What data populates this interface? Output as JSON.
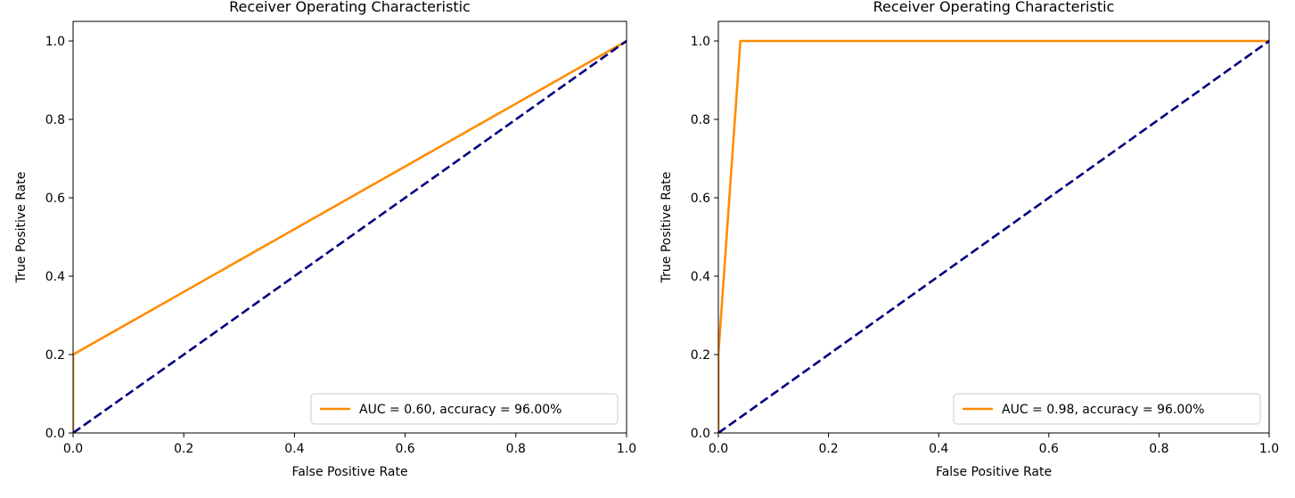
{
  "figure": {
    "background": "#ffffff"
  },
  "chart_data": [
    {
      "type": "line",
      "title": "Receiver Operating Characteristic",
      "xlabel": "False Positive Rate",
      "ylabel": "True Positive Rate",
      "xlim": [
        0.0,
        1.0
      ],
      "ylim": [
        0.0,
        1.05
      ],
      "xticks": [
        0.0,
        0.2,
        0.4,
        0.6,
        0.8,
        1.0
      ],
      "xtick_labels": [
        "0.0",
        "0.2",
        "0.4",
        "0.6",
        "0.8",
        "1.0"
      ],
      "yticks": [
        0.0,
        0.2,
        0.4,
        0.6,
        0.8,
        1.0
      ],
      "ytick_labels": [
        "0.0",
        "0.2",
        "0.4",
        "0.6",
        "0.8",
        "1.0"
      ],
      "grid": false,
      "legend_position": "lower right",
      "series": [
        {
          "name": "AUC = 0.60, accuracy = 96.00%",
          "color": "#ff8c00",
          "style": "solid",
          "x": [
            0.0,
            0.0,
            1.0
          ],
          "y": [
            0.0,
            0.2,
            1.0
          ]
        },
        {
          "color": "#000080",
          "style": "dashed",
          "x": [
            0.0,
            1.0
          ],
          "y": [
            0.0,
            1.0
          ]
        }
      ]
    },
    {
      "type": "line",
      "title": "Receiver Operating Characteristic",
      "xlabel": "False Positive Rate",
      "ylabel": "True Positive Rate",
      "xlim": [
        0.0,
        1.0
      ],
      "ylim": [
        0.0,
        1.05
      ],
      "xticks": [
        0.0,
        0.2,
        0.4,
        0.6,
        0.8,
        1.0
      ],
      "xtick_labels": [
        "0.0",
        "0.2",
        "0.4",
        "0.6",
        "0.8",
        "1.0"
      ],
      "yticks": [
        0.0,
        0.2,
        0.4,
        0.6,
        0.8,
        1.0
      ],
      "ytick_labels": [
        "0.0",
        "0.2",
        "0.4",
        "0.6",
        "0.8",
        "1.0"
      ],
      "grid": false,
      "legend_position": "lower right",
      "series": [
        {
          "name": "AUC = 0.98, accuracy = 96.00%",
          "color": "#ff8c00",
          "style": "solid",
          "x": [
            0.0,
            0.0,
            0.04,
            1.0
          ],
          "y": [
            0.0,
            0.2,
            1.0,
            1.0
          ]
        },
        {
          "color": "#000080",
          "style": "dashed",
          "x": [
            0.0,
            1.0
          ],
          "y": [
            0.0,
            1.0
          ]
        }
      ]
    }
  ]
}
